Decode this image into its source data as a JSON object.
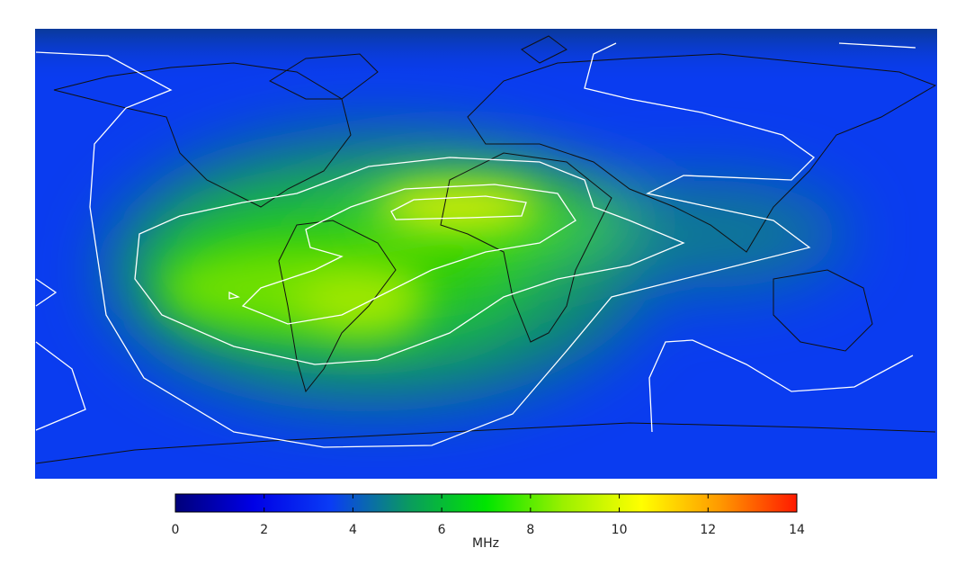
{
  "colorbar": {
    "label": "MHz",
    "lim": [
      0,
      14
    ],
    "ticks": [
      0,
      2,
      4,
      6,
      8,
      10,
      12,
      14
    ],
    "colormap": [
      "#00007a",
      "#0000e6",
      "#0a3cf5",
      "#0a9a60",
      "#00e600",
      "#9cf000",
      "#ffff00",
      "#ff9a00",
      "#ff1a00"
    ]
  }
}
